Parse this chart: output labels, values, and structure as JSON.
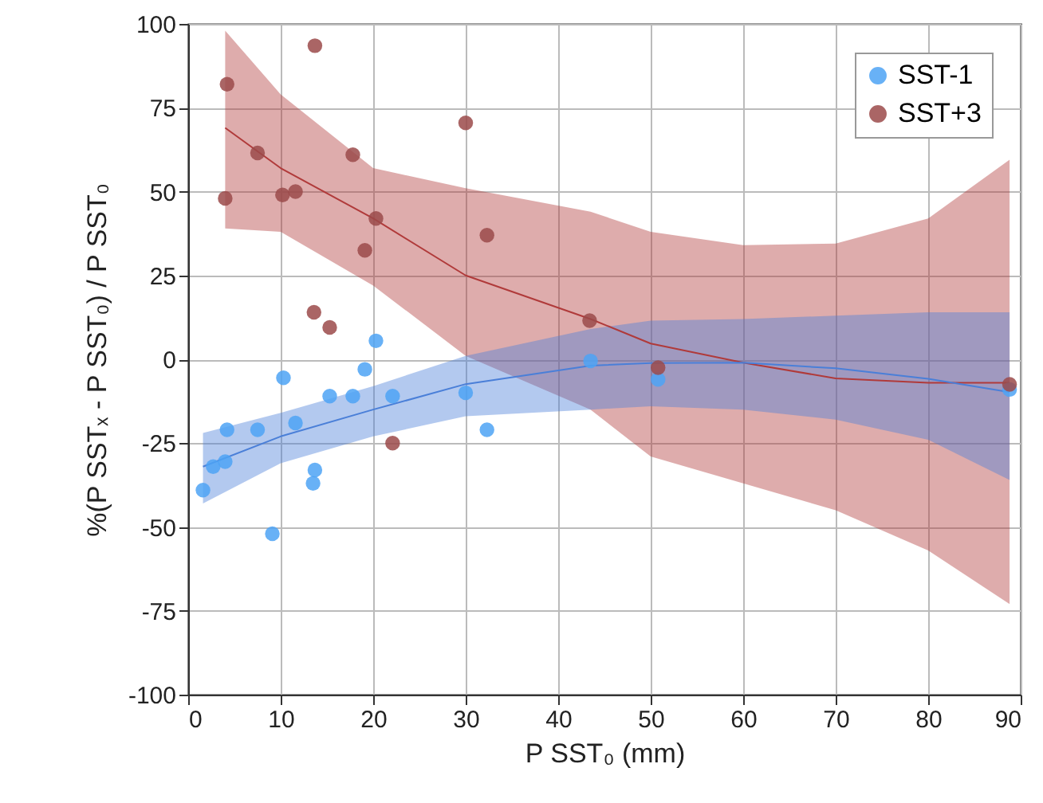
{
  "chart_data": {
    "type": "scatter",
    "xlabel": "P SST₀ (mm)",
    "ylabel": "%(P SSTₓ - P SST₀) / P SST₀",
    "xlim": [
      0,
      90
    ],
    "xticks": [
      0,
      10,
      20,
      30,
      40,
      50,
      60,
      70,
      80,
      90
    ],
    "ylim": [
      -100,
      100
    ],
    "yticks": [
      -100,
      -75,
      -50,
      -25,
      0,
      25,
      50,
      75,
      100
    ],
    "grid": true,
    "legend": "top right",
    "series": [
      {
        "type": "line",
        "color": "#b03a3a",
        "x": [
          4,
          10,
          20,
          30,
          43.5,
          50,
          60,
          70,
          80,
          88.8
        ],
        "values": [
          69,
          57,
          42,
          25,
          12,
          4.7,
          -1,
          -5.7,
          -7,
          -7
        ],
        "lower": [
          39,
          38,
          22,
          1,
          -15,
          -29,
          -37,
          -45,
          -57,
          -73
        ],
        "upper": [
          98,
          79,
          57,
          51,
          44,
          38,
          34,
          34.5,
          42,
          59.5
        ]
      },
      {
        "type": "line",
        "color": "#4a7fd8",
        "x": [
          1.6,
          10,
          20,
          30,
          43.5,
          50,
          60,
          70,
          80,
          88.8
        ],
        "values": [
          -32,
          -23,
          -15,
          -7.4,
          -1.9,
          -1.1,
          -1,
          -2.7,
          -5.8,
          -9.8
        ],
        "lower": [
          -43,
          -31,
          -23,
          -17,
          -15,
          -14,
          -15,
          -18,
          -24,
          -36
        ],
        "upper": [
          -22,
          -16,
          -8,
          1,
          9,
          11.5,
          12,
          13,
          14,
          14
        ]
      },
      {
        "name": "SST-1",
        "color": "#4da3f5",
        "marker": "circle",
        "x": [
          1.6,
          2.7,
          4.0,
          4.2,
          7.5,
          9.1,
          10.3,
          11.6,
          13.5,
          13.7,
          15.3,
          17.8,
          19.1,
          20.3,
          22.1,
          30,
          32.3,
          43.5,
          50.8,
          88.8
        ],
        "values": [
          -39,
          -32,
          -30.5,
          -21,
          -21,
          -52,
          -5.5,
          -19,
          -37,
          -33,
          -11,
          -11,
          -3,
          5.5,
          -11,
          -10,
          -21,
          -0.5,
          -6,
          -9
        ]
      },
      {
        "name": "SST+3",
        "color": "#9b4a4a",
        "marker": "circle",
        "x": [
          4.2,
          13.7,
          4.0,
          7.5,
          10.2,
          11.6,
          17.8,
          30,
          20.3,
          19.1,
          32.3,
          13.6,
          15.3,
          43.4,
          22.1,
          50.8,
          88.8
        ],
        "values": [
          82,
          93.5,
          48,
          61.5,
          49,
          50,
          61,
          70.5,
          42,
          32.5,
          37,
          14,
          9.5,
          11.5,
          -25,
          -2.5,
          -7.5
        ]
      }
    ]
  }
}
